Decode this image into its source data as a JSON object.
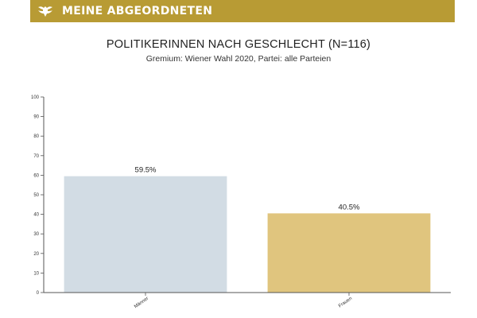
{
  "header": {
    "brand": "MEINE ABGEORDNETEN",
    "logo_icon": "eagle-icon",
    "color": "#b89b34"
  },
  "chart_data": {
    "type": "bar",
    "title": "POLITIKERINNEN NACH GESCHLECHT (N=116)",
    "subtitle": "Gremium: Wiener Wahl 2020, Partei: alle Parteien",
    "categories": [
      "Männer",
      "Frauen"
    ],
    "values": [
      59.5,
      40.5
    ],
    "value_labels": [
      "59.5%",
      "40.5%"
    ],
    "colors": [
      "#d2dce4",
      "#e0c57e"
    ],
    "ylim": [
      0,
      100
    ],
    "yticks": [
      0,
      10,
      20,
      30,
      40,
      50,
      60,
      70,
      80,
      90,
      100
    ],
    "grid": false,
    "xlabel": "",
    "ylabel": ""
  }
}
